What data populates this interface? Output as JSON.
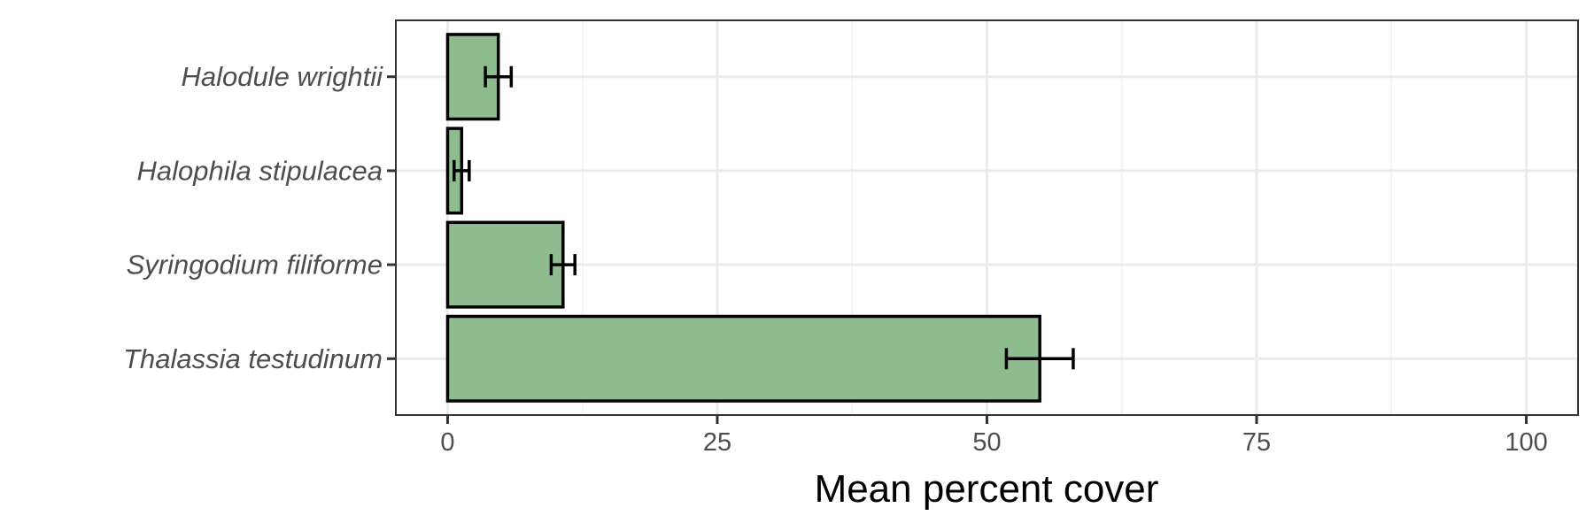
{
  "chart_data": {
    "type": "bar",
    "orientation": "horizontal",
    "categories": [
      "Halodule wrightii",
      "Halophila stipulacea",
      "Syringodium filiforme",
      "Thalassia testudinum"
    ],
    "values": [
      4.7,
      1.3,
      10.7,
      54.9
    ],
    "error_low": [
      3.5,
      0.6,
      9.6,
      51.8
    ],
    "error_high": [
      5.9,
      2.0,
      11.8,
      58.0
    ],
    "xlabel": "Mean percent cover",
    "ylabel": "",
    "xlim": [
      -4.8,
      104.8
    ],
    "x_ticks": [
      0,
      25,
      50,
      75,
      100
    ],
    "x_tick_labels": [
      "0",
      "25",
      "50",
      "75",
      "100"
    ],
    "grid": true,
    "colors": {
      "bar_fill": "#8fbc8f",
      "bar_stroke": "#000000",
      "grid_major": "#ebebeb",
      "grid_minor": "#f2f2f2",
      "panel_border": "#333333",
      "text": "#4d4d4d"
    }
  }
}
